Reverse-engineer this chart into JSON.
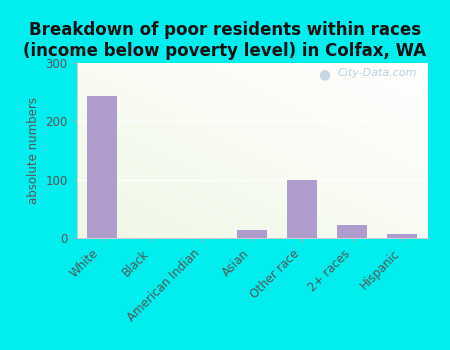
{
  "categories": [
    "White",
    "Black",
    "American Indian",
    "Asian",
    "Other race",
    "2+ races",
    "Hispanic"
  ],
  "values": [
    243,
    0,
    0,
    13,
    100,
    22,
    7
  ],
  "bar_color": "#b09ccc",
  "title": "Breakdown of poor residents within races\n(income below poverty level) in Colfax, WA",
  "ylabel": "absolute numbers",
  "ylim": [
    0,
    300
  ],
  "yticks": [
    0,
    100,
    200,
    300
  ],
  "bg_outer": "#00EEEE",
  "title_fontsize": 12,
  "label_fontsize": 8.5,
  "tick_fontsize": 8.5,
  "watermark": "City-Data.com"
}
